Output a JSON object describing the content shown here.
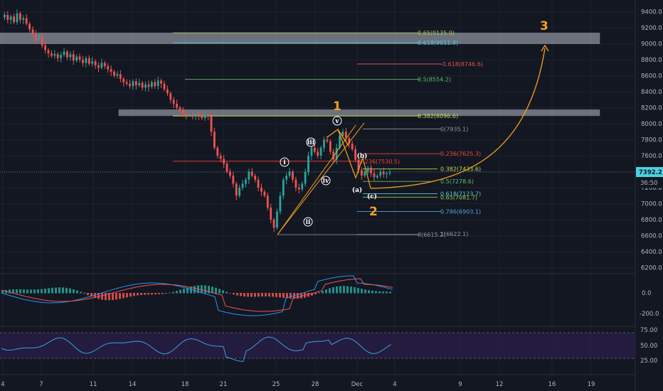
{
  "chart_data": {
    "type": "candlestick",
    "price_axis": {
      "ticks": [
        "9400.0",
        "9200.0",
        "9000.0",
        "8800.0",
        "8600.0",
        "8400.0",
        "8200.0",
        "8000.0",
        "7800.0",
        "7600.0",
        "7400.0",
        "7200.0",
        "7000.0",
        "6800.0",
        "6600.0",
        "6400.0",
        "6200.0"
      ],
      "ylim": [
        6200,
        9400
      ],
      "current_price": "7392.2",
      "countdown": "36:50"
    },
    "date_axis": {
      "ticks": [
        "4",
        "7",
        "11",
        "14",
        "18",
        "21",
        "25",
        "28",
        "Dec",
        "4",
        "9",
        "12",
        "16",
        "19"
      ]
    },
    "resistance_zones": [
      {
        "low": 9000,
        "high": 9135
      },
      {
        "low": 8100,
        "high": 8175
      }
    ],
    "fib_levels": [
      {
        "label": "0.65(9135.9)",
        "price": 9135.9,
        "color": "#a5c94a"
      },
      {
        "label": "0.618(9011.9)",
        "price": 9011.9,
        "color": "#4dd0e1"
      },
      {
        "label": "-0.618(8746.6)",
        "price": 8746.6,
        "color": "#e05252"
      },
      {
        "label": "0.5(8554.2)",
        "price": 8554.2,
        "color": "#66bb6a"
      },
      {
        "label": "0.382(8096.6)",
        "price": 8096.6,
        "color": "#c6d84a"
      },
      {
        "label": "0(7935.1)",
        "price": 7935.1,
        "color": "#9598a1"
      },
      {
        "label": "0.236(7625.3)",
        "price": 7625.3,
        "color": "#f44336"
      },
      {
        "label": "0.236(7530.5)",
        "price": 7530.5,
        "color": "#f44336"
      },
      {
        "label": "0.382(7433.6)",
        "price": 7433.6,
        "color": "#c6d84a"
      },
      {
        "label": "0.5(7278.6)",
        "price": 7278.6,
        "color": "#66bb6a"
      },
      {
        "label": "0.618(7123.7)",
        "price": 7123.7,
        "color": "#4dd0e1"
      },
      {
        "label": "0.65(7081.7)",
        "price": 7081.7,
        "color": "#a5c94a"
      },
      {
        "label": "0.786(6903.1)",
        "price": 6903.1,
        "color": "#4fa3e0"
      },
      {
        "label": "0(6615.2)",
        "price": 6615.2,
        "color": "#9598a1"
      },
      {
        "label": "1(6622.1)",
        "price": 6622.1,
        "color": "#9598a1"
      }
    ],
    "wave_labels": {
      "major": [
        "1",
        "2",
        "3"
      ],
      "minor": [
        "i",
        "ii",
        "iii",
        "iv",
        "v"
      ],
      "corrective": [
        "(a)",
        "(b)",
        "(c)"
      ]
    },
    "macd_axis": {
      "ticks": [
        "0.0",
        "-200.0"
      ]
    },
    "rsi_axis": {
      "ticks": [
        "75.00",
        "50.00",
        "25.00"
      ]
    }
  },
  "colors": {
    "background": "#131722",
    "up": "#26a69a",
    "down": "#ef5350",
    "wave": "#f7a01e",
    "price_line": "#4dd0e1",
    "rsi": "#3aa0e0",
    "rsi_band": "#2a1f4a"
  }
}
